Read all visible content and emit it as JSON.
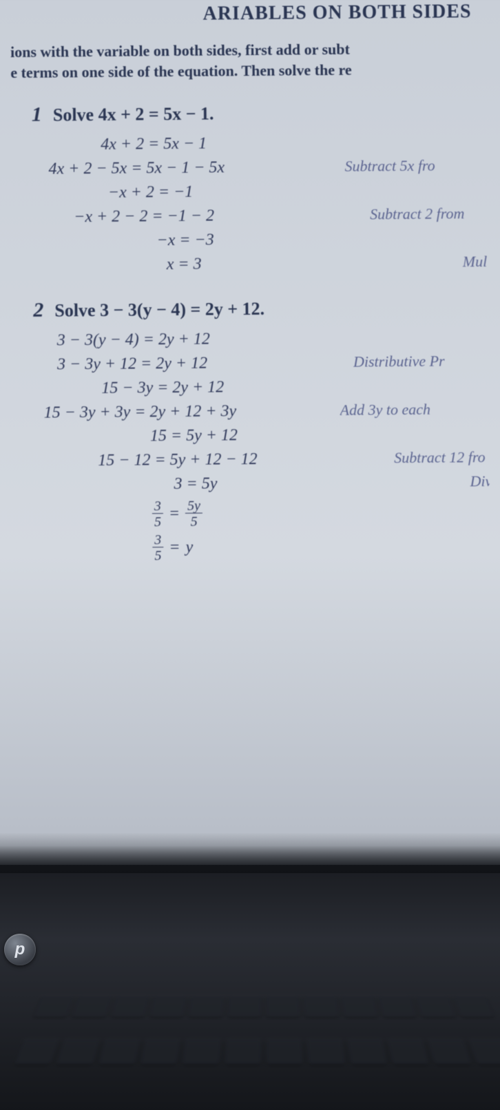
{
  "chapter_title": "ARIABLES ON BOTH SIDES",
  "intro_line1": "ions with the variable on both sides, first add or subt",
  "intro_line2": "e terms on one side of the equation. Then solve the re",
  "example1": {
    "num": "1",
    "prompt": "Solve 4x + 2 = 5x − 1.",
    "steps": [
      {
        "eq": "4x + 2 = 5x − 1",
        "note": ""
      },
      {
        "eq": "4x + 2 − 5x = 5x − 1 − 5x",
        "note": "Subtract 5x fro"
      },
      {
        "eq": "−x + 2 = −1",
        "note": ""
      },
      {
        "eq": "−x + 2 − 2 = −1 − 2",
        "note": "Subtract 2 from"
      },
      {
        "eq": "−x = −3",
        "note": ""
      },
      {
        "eq": "x = 3",
        "note": "Multiply each s"
      }
    ],
    "indents": [
      130,
      54,
      140,
      90,
      210,
      224
    ]
  },
  "example2": {
    "num": "2",
    "prompt": "Solve 3 − 3(y − 4) = 2y + 12.",
    "steps": [
      {
        "eq": "3 − 3(y − 4) = 2y + 12",
        "note": ""
      },
      {
        "eq": "3 − 3y + 12 = 2y + 12",
        "note": "Distributive Pr"
      },
      {
        "eq": "15 − 3y = 2y + 12",
        "note": ""
      },
      {
        "eq": "15 − 3y + 3y = 2y + 12 + 3y",
        "note": "Add 3y to each"
      },
      {
        "eq": "15 = 5y + 12",
        "note": ""
      },
      {
        "eq": "15 − 12 = 5y + 12 − 12",
        "note": "Subtract 12 fro"
      },
      {
        "eq": "3 = 5y",
        "note": "Divide each sid"
      }
    ],
    "indents": [
      64,
      64,
      128,
      44,
      198,
      122,
      232
    ],
    "frac1": {
      "ln": "3",
      "ld": "5",
      "mid": "=",
      "rn": "5y",
      "rd": "5"
    },
    "frac2": {
      "ln": "3",
      "ld": "5",
      "mid": "=",
      "r": "y"
    }
  },
  "hp_logo": "p",
  "colors": {
    "text": "#2a3552",
    "note": "#5b6490",
    "page_bg_top": "#c9cfd8",
    "page_bg_bot": "#b8bec8",
    "laptop": "#1a1c21"
  }
}
